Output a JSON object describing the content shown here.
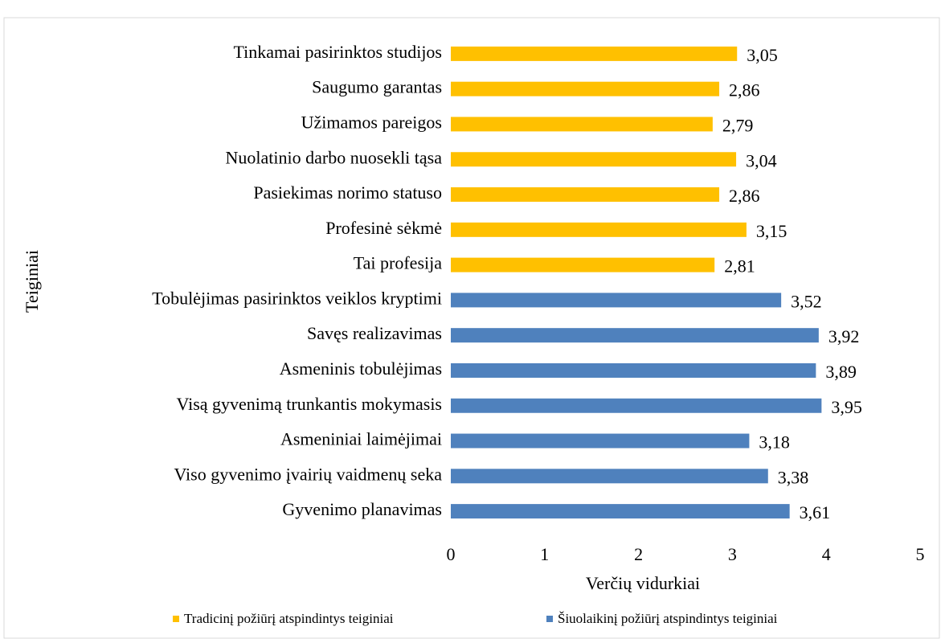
{
  "chart_data": {
    "type": "barh",
    "xlabel": "Verčių vidurkiai",
    "ylabel": "Teiginiai",
    "categories": [
      "Tinkamai pasirinktos studijos",
      "Saugumo garantas",
      "Užimamos pareigos",
      "Nuolatinio darbo nuosekli tąsa",
      "Pasiekimas norimo statuso",
      "Profesinė sėkmė",
      "Tai profesija",
      "Tobulėjimas pasirinktos veiklos kryptimi",
      "Savęs realizavimas",
      "Asmeninis tobulėjimas",
      "Visą gyvenimą trunkantis mokymasis",
      "Asmeniniai laimėjimai",
      "Viso gyvenimo įvairių vaidmenų seka",
      "Gyvenimo planavimas"
    ],
    "series": [
      {
        "name": "Tradicinį požiūrį atspindintys teiginiai",
        "color": "#ffc000",
        "values": [
          3.05,
          2.86,
          2.79,
          3.04,
          2.86,
          3.15,
          2.81,
          null,
          null,
          null,
          null,
          null,
          null,
          null
        ],
        "value_labels": [
          "3,05",
          "2,86",
          "2,79",
          "3,04",
          "2,86",
          "3,15",
          "2,81",
          null,
          null,
          null,
          null,
          null,
          null,
          null
        ]
      },
      {
        "name": "Šiuolaikinį požiūrį atspindintys teiginiai",
        "color": "#4f81bd",
        "values": [
          null,
          null,
          null,
          null,
          null,
          null,
          null,
          3.52,
          3.92,
          3.89,
          3.95,
          3.18,
          3.38,
          3.61
        ],
        "value_labels": [
          null,
          null,
          null,
          null,
          null,
          null,
          null,
          "3,52",
          "3,92",
          "3,89",
          "3,95",
          "3,18",
          "3,38",
          "3,61"
        ]
      }
    ],
    "xlim": [
      0,
      5
    ],
    "xticks": [
      0,
      1,
      2,
      3,
      4,
      5
    ],
    "grid": false
  }
}
